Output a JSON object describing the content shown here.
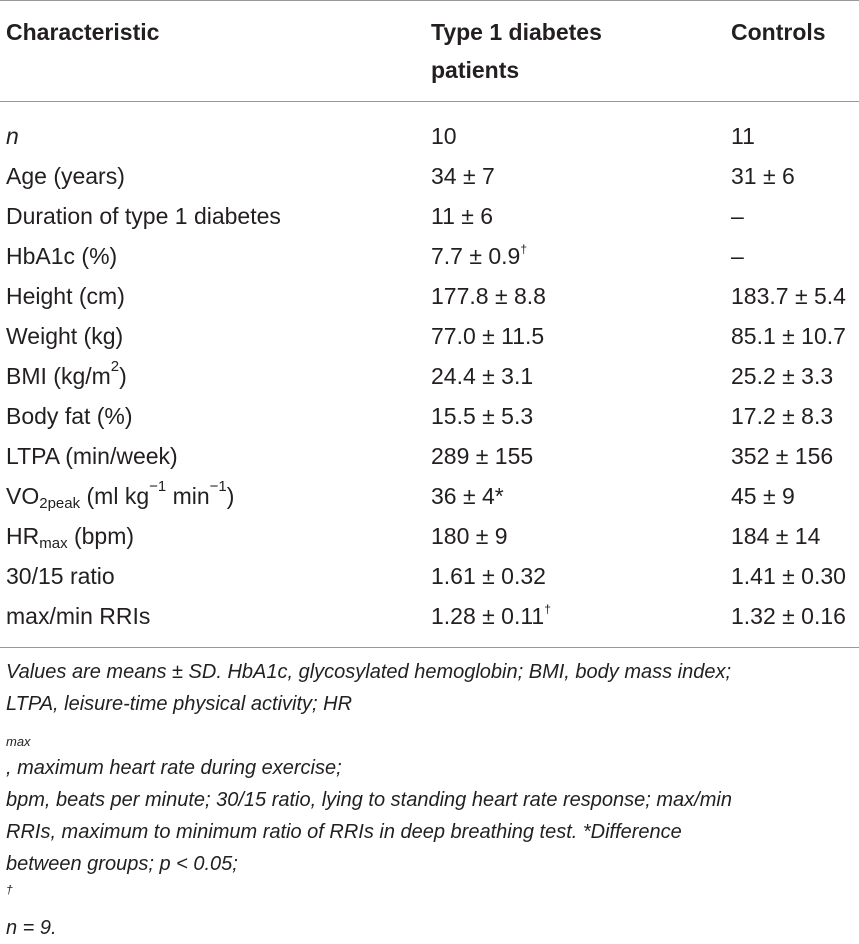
{
  "table": {
    "headers": {
      "characteristic": "Characteristic",
      "group1_line1": "Type 1 diabetes",
      "group1_line2": "patients",
      "controls": "Controls"
    },
    "rows": [
      {
        "label": "n",
        "t1d": "10",
        "ctrl": "11"
      },
      {
        "label": "Age (years)",
        "t1d": "34 ± 7",
        "ctrl": "31 ± 6"
      },
      {
        "label": "Duration of type 1 diabetes",
        "t1d": "11 ± 6",
        "ctrl": "–"
      },
      {
        "label": "HbA1c (%)",
        "t1d": "7.7 ± 0.9",
        "t1d_mark": "†",
        "ctrl": "–"
      },
      {
        "label": "Height (cm)",
        "t1d": "177.8 ± 8.8",
        "ctrl": "183.7 ± 5.4"
      },
      {
        "label": "Weight (kg)",
        "t1d": "77.0 ± 11.5",
        "ctrl": "85.1 ± 10.7"
      },
      {
        "label_pre": "BMI (kg/m",
        "label_sup": "2",
        "label_post": ")",
        "t1d": "24.4 ± 3.1",
        "ctrl": "25.2 ± 3.3"
      },
      {
        "label": "Body fat (%)",
        "t1d": "15.5 ± 5.3",
        "ctrl": "17.2 ± 8.3"
      },
      {
        "label": "LTPA (min/week)",
        "t1d": "289 ± 155",
        "ctrl": "352 ± 156"
      },
      {
        "label_pre": "VO",
        "label_sub": "2peak",
        "label_mid": " (ml kg",
        "label_sup1": "−1",
        "label_mid2": " min",
        "label_sup2": "−1",
        "label_post": ")",
        "t1d": "36 ± 4*",
        "ctrl": "45 ± 9"
      },
      {
        "label_pre": "HR",
        "label_sub": "max",
        "label_post": " (bpm)",
        "t1d": "180 ± 9",
        "ctrl": "184 ± 14"
      },
      {
        "label": "30/15 ratio",
        "t1d": "1.61 ± 0.32",
        "ctrl": "1.41 ± 0.30"
      },
      {
        "label": "max/min RRIs",
        "t1d": "1.28 ± 0.11",
        "t1d_mark": "†",
        "ctrl": "1.32 ± 0.16"
      }
    ],
    "footnote": {
      "line1": "Values are means ± SD. HbA1c, glycosylated hemoglobin; BMI, body mass index;",
      "line2_pre": "LTPA, leisure-time physical activity; HR",
      "line2_sub": "max",
      "line2_post": ", maximum heart rate during exercise;",
      "line3": "bpm, beats per minute; 30/15 ratio, lying to standing heart rate response; max/min",
      "line4": "RRIs, maximum to minimum ratio of RRIs in deep breathing test. *Difference",
      "line5_pre": "between groups; p < 0.05; ",
      "line5_sup": "†",
      "line5_post": "n = 9."
    }
  }
}
